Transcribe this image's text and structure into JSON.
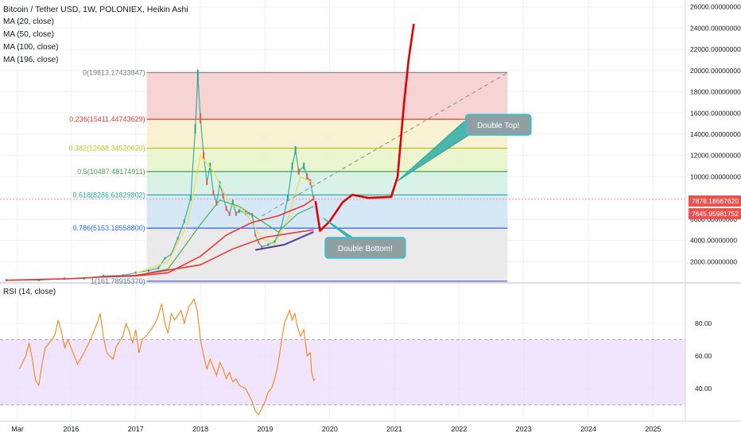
{
  "legend": {
    "title": "Bitcoin / Tether USD, 1W, POLONIEX, Heikin Ashi",
    "ma": [
      "MA (20, close)",
      "MA (50, close)",
      "MA (100, close)",
      "MA (196, close)"
    ]
  },
  "rsi_label": "RSI (14, close)",
  "price_tags": [
    "7878.18667620",
    "7645.95981752"
  ],
  "chart_data": {
    "type": "line",
    "title": "Bitcoin / Tether USD, 1W, POLONIEX, Heikin Ashi",
    "price_axis": {
      "ticks": [
        26000,
        24000,
        22000,
        20000,
        18000,
        16000,
        14000,
        12000,
        10000,
        8000,
        6000,
        4000,
        2000
      ],
      "labels": [
        "26000.00000000",
        "24000.00000000",
        "22000.00000000",
        "20000.00000000",
        "18000.00000000",
        "16000.00000000",
        "14000.00000000",
        "12000.00000000",
        "10000.00000000",
        "8000.00000000",
        "6000.00000000",
        "4000.00000000",
        "2000.00000000"
      ],
      "ylim": [
        0,
        26500
      ]
    },
    "time_axis": {
      "labels": [
        "Mar",
        "2016",
        "2017",
        "2018",
        "2019",
        "2020",
        "2021",
        "2022",
        "2023",
        "2024",
        "2025"
      ],
      "years": [
        2015.17,
        2016.0,
        2017.0,
        2018.0,
        2019.0,
        2020.0,
        2021.0,
        2022.0,
        2023.0,
        2024.0,
        2025.0
      ],
      "xlim": [
        2014.9,
        2025.5
      ]
    },
    "fib_levels": [
      {
        "label": "0(19813.17433847)",
        "ratio": 0,
        "value": 19813.17,
        "color": "#787b86"
      },
      {
        "label": "0.236(15411.44743629)",
        "ratio": 0.236,
        "value": 15411.45,
        "color": "#e53935"
      },
      {
        "label": "0.382(12688.34520020)",
        "ratio": 0.382,
        "value": 12688.35,
        "color": "#c0c020"
      },
      {
        "label": "0.5(10487.48174911)",
        "ratio": 0.5,
        "value": 10487.48,
        "color": "#43a047"
      },
      {
        "label": "0.618(8286.61829802)",
        "ratio": 0.618,
        "value": 8286.62,
        "color": "#26a69a"
      },
      {
        "label": "0.786(5153.18558800)",
        "ratio": 0.786,
        "value": 5153.19,
        "color": "#2962ff"
      },
      {
        "label": "1(161.78915370)",
        "ratio": 1,
        "value": 161.79,
        "color": "#5c6bc0"
      }
    ],
    "fib_zone_colors": [
      "#f6cdcd",
      "#f7f0c8",
      "#e8f5c8",
      "#d2f0e4",
      "#cfe3f5",
      "#e6e6e6"
    ],
    "fib_x_range": [
      2017.17,
      2022.75
    ],
    "price_series": [
      [
        2015.0,
        250
      ],
      [
        2015.5,
        260
      ],
      [
        2015.9,
        400
      ],
      [
        2016.2,
        420
      ],
      [
        2016.5,
        650
      ],
      [
        2016.8,
        700
      ],
      [
        2017.0,
        950
      ],
      [
        2017.2,
        1150
      ],
      [
        2017.35,
        1400
      ],
      [
        2017.45,
        2300
      ],
      [
        2017.55,
        2700
      ],
      [
        2017.65,
        4200
      ],
      [
        2017.75,
        5800
      ],
      [
        2017.85,
        8000
      ],
      [
        2017.92,
        14500
      ],
      [
        2017.96,
        19500
      ],
      [
        2018.0,
        15500
      ],
      [
        2018.05,
        12000
      ],
      [
        2018.1,
        9500
      ],
      [
        2018.15,
        11000
      ],
      [
        2018.2,
        8500
      ],
      [
        2018.25,
        7500
      ],
      [
        2018.3,
        9300
      ],
      [
        2018.35,
        8200
      ],
      [
        2018.4,
        7000
      ],
      [
        2018.45,
        6500
      ],
      [
        2018.5,
        7600
      ],
      [
        2018.55,
        6500
      ],
      [
        2018.6,
        6800
      ],
      [
        2018.7,
        6600
      ],
      [
        2018.8,
        6400
      ],
      [
        2018.85,
        4500
      ],
      [
        2018.9,
        3800
      ],
      [
        2018.95,
        3400
      ],
      [
        2019.05,
        3600
      ],
      [
        2019.15,
        3900
      ],
      [
        2019.25,
        5200
      ],
      [
        2019.35,
        8000
      ],
      [
        2019.42,
        11000
      ],
      [
        2019.47,
        12500
      ],
      [
        2019.52,
        10500
      ],
      [
        2019.6,
        11000
      ],
      [
        2019.65,
        10000
      ],
      [
        2019.7,
        9500
      ],
      [
        2019.75,
        8000
      ]
    ],
    "ma_series": [
      {
        "name": "MA (20, close)",
        "color": "#f5d946",
        "points": [
          [
            2017.0,
            900
          ],
          [
            2017.5,
            2000
          ],
          [
            2017.8,
            5500
          ],
          [
            2018.0,
            12000
          ],
          [
            2018.2,
            10500
          ],
          [
            2018.45,
            7500
          ],
          [
            2018.7,
            6600
          ],
          [
            2018.95,
            4200
          ],
          [
            2019.15,
            3600
          ],
          [
            2019.35,
            6000
          ],
          [
            2019.55,
            10000
          ],
          [
            2019.75,
            9400
          ]
        ]
      },
      {
        "name": "MA (50, close)",
        "color": "#4caf50",
        "points": [
          [
            2017.0,
            700
          ],
          [
            2017.5,
            1300
          ],
          [
            2018.0,
            5500
          ],
          [
            2018.3,
            7800
          ],
          [
            2018.6,
            7200
          ],
          [
            2018.9,
            6000
          ],
          [
            2019.2,
            4800
          ],
          [
            2019.5,
            6500
          ],
          [
            2019.75,
            7200
          ]
        ]
      },
      {
        "name": "MA (100, close)",
        "color": "#e53935",
        "points": [
          [
            2016.5,
            550
          ],
          [
            2017.0,
            650
          ],
          [
            2017.5,
            950
          ],
          [
            2018.0,
            2500
          ],
          [
            2018.4,
            4500
          ],
          [
            2018.8,
            5700
          ],
          [
            2019.2,
            6300
          ],
          [
            2019.6,
            7300
          ],
          [
            2019.75,
            7900
          ]
        ]
      },
      {
        "name": "MA (196, close)",
        "color": "#e53935",
        "points": [
          [
            2015.0,
            250
          ],
          [
            2016.0,
            400
          ],
          [
            2017.0,
            700
          ],
          [
            2018.0,
            1700
          ],
          [
            2018.5,
            3200
          ],
          [
            2019.0,
            4300
          ],
          [
            2019.75,
            5000
          ]
        ]
      }
    ],
    "projection": {
      "color": "#e00000",
      "points": [
        [
          2019.78,
          7700
        ],
        [
          2019.85,
          4900
        ],
        [
          2020.0,
          5800
        ],
        [
          2020.2,
          7600
        ],
        [
          2020.35,
          8300
        ],
        [
          2020.6,
          8000
        ],
        [
          2020.95,
          8100
        ],
        [
          2021.05,
          10000
        ],
        [
          2021.15,
          17000
        ],
        [
          2021.22,
          21000
        ],
        [
          2021.3,
          24400
        ]
      ]
    },
    "trend_lines": [
      {
        "color": "#888888",
        "dashed": true,
        "points": [
          [
            2018.95,
            6300
          ],
          [
            2022.75,
            19800
          ]
        ]
      },
      {
        "color": "#4b3a9e",
        "dashed": false,
        "points": [
          [
            2018.85,
            3100
          ],
          [
            2019.3,
            3600
          ],
          [
            2019.75,
            4800
          ]
        ]
      },
      {
        "color": "#5b45b0",
        "dashed": false,
        "points": [
          [
            2019.3,
            3600
          ],
          [
            2019.75,
            4800
          ]
        ]
      }
    ],
    "annotations": [
      {
        "text": "Double Top!",
        "pointer": [
          2021.05,
          9600
        ],
        "box": [
          2022.2,
          14900
        ]
      },
      {
        "text": "Double Bottom!",
        "pointer": [
          2019.9,
          6100
        ],
        "box": [
          2020.55,
          3300
        ]
      }
    ],
    "current_prices": [
      7878.19,
      7645.96
    ],
    "rsi": {
      "name": "RSI (14, close)",
      "color": "#f57c00",
      "ylim": [
        20,
        100
      ],
      "upper": 70,
      "lower": 30,
      "ticks": [
        80,
        60,
        40
      ],
      "tick_labels": [
        "80.00",
        "60.00",
        "40.00"
      ],
      "points": [
        [
          2015.2,
          52
        ],
        [
          2015.3,
          60
        ],
        [
          2015.35,
          68
        ],
        [
          2015.4,
          58
        ],
        [
          2015.45,
          45
        ],
        [
          2015.5,
          42
        ],
        [
          2015.55,
          55
        ],
        [
          2015.6,
          65
        ],
        [
          2015.7,
          70
        ],
        [
          2015.75,
          73
        ],
        [
          2015.8,
          82
        ],
        [
          2015.85,
          75
        ],
        [
          2015.9,
          65
        ],
        [
          2015.95,
          70
        ],
        [
          2016.05,
          60
        ],
        [
          2016.1,
          55
        ],
        [
          2016.2,
          62
        ],
        [
          2016.3,
          70
        ],
        [
          2016.4,
          80
        ],
        [
          2016.45,
          86
        ],
        [
          2016.5,
          72
        ],
        [
          2016.55,
          62
        ],
        [
          2016.65,
          58
        ],
        [
          2016.7,
          66
        ],
        [
          2016.8,
          72
        ],
        [
          2016.85,
          80
        ],
        [
          2016.9,
          75
        ],
        [
          2016.95,
          68
        ],
        [
          2017.0,
          76
        ],
        [
          2017.05,
          62
        ],
        [
          2017.1,
          70
        ],
        [
          2017.2,
          74
        ],
        [
          2017.3,
          80
        ],
        [
          2017.35,
          85
        ],
        [
          2017.4,
          92
        ],
        [
          2017.45,
          80
        ],
        [
          2017.5,
          74
        ],
        [
          2017.55,
          86
        ],
        [
          2017.6,
          82
        ],
        [
          2017.7,
          88
        ],
        [
          2017.75,
          80
        ],
        [
          2017.82,
          90
        ],
        [
          2017.9,
          95
        ],
        [
          2017.95,
          88
        ],
        [
          2018.0,
          70
        ],
        [
          2018.05,
          60
        ],
        [
          2018.1,
          52
        ],
        [
          2018.15,
          58
        ],
        [
          2018.25,
          48
        ],
        [
          2018.3,
          56
        ],
        [
          2018.35,
          52
        ],
        [
          2018.4,
          46
        ],
        [
          2018.45,
          50
        ],
        [
          2018.5,
          44
        ],
        [
          2018.55,
          46
        ],
        [
          2018.6,
          42
        ],
        [
          2018.7,
          40
        ],
        [
          2018.75,
          36
        ],
        [
          2018.8,
          32
        ],
        [
          2018.85,
          26
        ],
        [
          2018.9,
          24
        ],
        [
          2018.95,
          28
        ],
        [
          2019.0,
          32
        ],
        [
          2019.05,
          38
        ],
        [
          2019.1,
          40
        ],
        [
          2019.15,
          46
        ],
        [
          2019.2,
          55
        ],
        [
          2019.25,
          68
        ],
        [
          2019.3,
          80
        ],
        [
          2019.38,
          88
        ],
        [
          2019.42,
          82
        ],
        [
          2019.46,
          86
        ],
        [
          2019.5,
          78
        ],
        [
          2019.55,
          72
        ],
        [
          2019.6,
          76
        ],
        [
          2019.65,
          60
        ],
        [
          2019.7,
          62
        ],
        [
          2019.72,
          50
        ],
        [
          2019.75,
          45
        ],
        [
          2019.78,
          46
        ]
      ]
    },
    "grid": true
  }
}
